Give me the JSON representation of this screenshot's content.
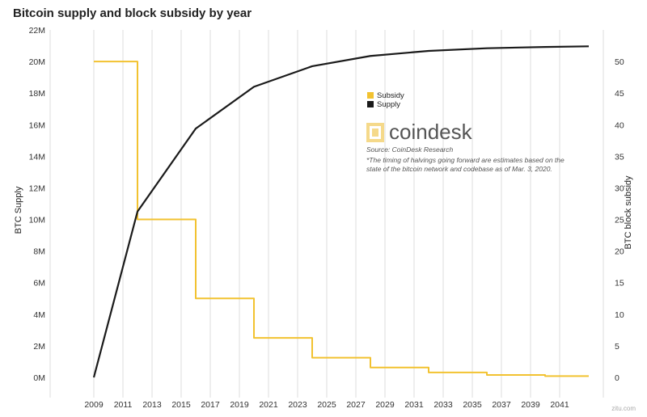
{
  "chart_data": {
    "type": "line",
    "title": "Bitcoin supply and block subsidy by year",
    "ylabel_left": "BTC Supply",
    "ylabel_right": "BTC block subsidy",
    "x_ticks": [
      "2009",
      "2011",
      "2013",
      "2015",
      "2017",
      "2019",
      "2021",
      "2023",
      "2025",
      "2027",
      "2029",
      "2031",
      "2033",
      "2035",
      "2037",
      "2039",
      "2041"
    ],
    "y_left_ticks": [
      "0M",
      "2M",
      "4M",
      "6M",
      "8M",
      "10M",
      "12M",
      "14M",
      "16M",
      "18M",
      "20M",
      "22M"
    ],
    "y_right_ticks": [
      "0",
      "5",
      "10",
      "15",
      "20",
      "25",
      "30",
      "35",
      "40",
      "45",
      "50"
    ],
    "xlim": [
      2006,
      2044
    ],
    "ylim_left": [
      0,
      22
    ],
    "ylim_right": [
      0,
      55
    ],
    "series": [
      {
        "name": "Subsidy",
        "color": "#f2c230",
        "axis": "right",
        "step": true,
        "x": [
          2009,
          2012,
          2016,
          2020,
          2024,
          2028,
          2032,
          2036,
          2040,
          2043
        ],
        "values": [
          50,
          25,
          12.5,
          6.25,
          3.125,
          1.5625,
          0.78,
          0.39,
          0.2,
          0.2
        ]
      },
      {
        "name": "Supply",
        "color": "#1a1a1a",
        "axis": "left",
        "step": false,
        "x": [
          2009,
          2012,
          2016,
          2020,
          2024,
          2028,
          2032,
          2036,
          2040,
          2043
        ],
        "values": [
          0,
          10.5,
          15.75,
          18.4,
          19.7,
          20.35,
          20.67,
          20.84,
          20.92,
          20.96
        ]
      }
    ],
    "legend_placement": "center-right",
    "grid": "vertical"
  },
  "branding": {
    "logo": "coindesk",
    "source": "Source: CoinDesk Research",
    "note_line1": "*The timing of halvings going forward are estimates based on the",
    "note_line2": "state of the bitcoin network and codebase as of Mar. 3, 2020.",
    "watermark": "zitu.com"
  }
}
